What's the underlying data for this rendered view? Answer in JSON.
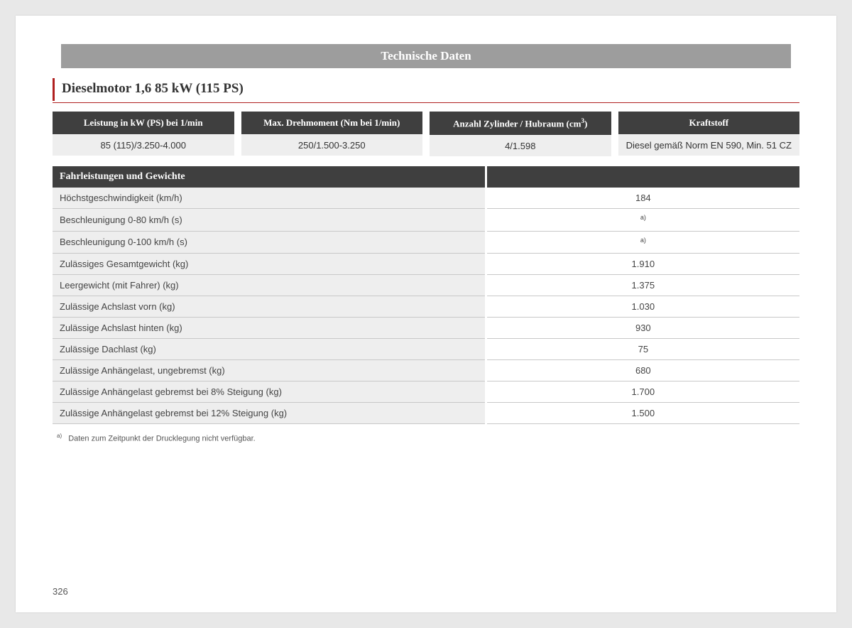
{
  "header": {
    "title": "Technische Daten"
  },
  "section_title": "Dieselmotor 1,6 85 kW (115 PS)",
  "specs": {
    "cols": [
      {
        "head": "Leistung in kW (PS) bei 1/min",
        "val": "85 (115)/3.250-4.000"
      },
      {
        "head": "Max. Drehmoment (Nm bei 1/min)",
        "val": "250/1.500-3.250"
      },
      {
        "head_html": "Anzahl Zylinder / Hubraum (cm<sup>3</sup>)",
        "val": "4/1.598"
      },
      {
        "head": "Kraftstoff",
        "val": "Diesel gemäß Norm EN 590, Min. 51 CZ"
      }
    ]
  },
  "perf": {
    "heading": "Fahrleistungen und Gewichte",
    "rows": [
      {
        "label": "Höchstgeschwindigkeit (km/h)",
        "value": "184"
      },
      {
        "label": "Beschleunigung 0-80 km/h (s)",
        "value_html": "<span class='note-sup'>a)</span>"
      },
      {
        "label": "Beschleunigung 0-100 km/h (s)",
        "value_html": "<span class='note-sup'>a)</span>"
      },
      {
        "label": "Zulässiges Gesamtgewicht (kg)",
        "value": "1.910"
      },
      {
        "label": "Leergewicht (mit Fahrer) (kg)",
        "value": "1.375"
      },
      {
        "label": "Zulässige Achslast vorn (kg)",
        "value": "1.030"
      },
      {
        "label": "Zulässige Achslast hinten (kg)",
        "value": "930"
      },
      {
        "label": "Zulässige Dachlast (kg)",
        "value": "75"
      },
      {
        "label": "Zulässige Anhängelast, ungebremst (kg)",
        "value": "680"
      },
      {
        "label": "Zulässige Anhängelast gebremst bei 8% Steigung (kg)",
        "value": "1.700"
      },
      {
        "label": "Zulässige Anhängelast gebremst bei 12% Steigung (kg)",
        "value": "1.500"
      }
    ]
  },
  "footnote": {
    "marker": "a)",
    "text": "Daten zum Zeitpunkt der Drucklegung nicht verfügbar."
  },
  "page_number": "326"
}
